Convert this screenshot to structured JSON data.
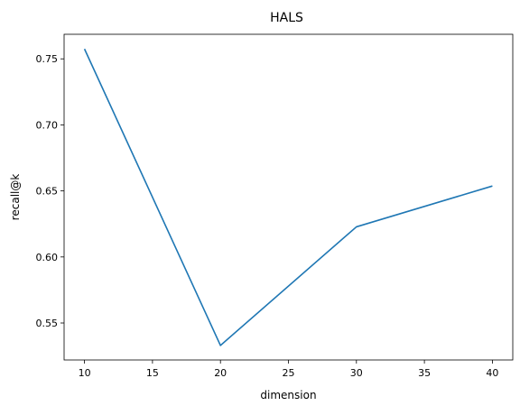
{
  "chart_data": {
    "type": "line",
    "title": "HALS",
    "xlabel": "dimension",
    "ylabel": "recall@k",
    "x": [
      10,
      20,
      30,
      40
    ],
    "series": [
      {
        "values": [
          0.7575,
          0.533,
          0.6228,
          0.6537
        ]
      }
    ],
    "xlim": [
      8.5,
      41.5
    ],
    "ylim": [
      0.522,
      0.7686
    ],
    "xticks": [
      10,
      15,
      20,
      25,
      30,
      35,
      40
    ],
    "yticks": [
      0.55,
      0.6,
      0.65,
      0.7,
      0.75
    ],
    "xtick_labels": [
      "10",
      "15",
      "20",
      "25",
      "30",
      "35",
      "40"
    ],
    "ytick_labels": [
      "0.55",
      "0.60",
      "0.65",
      "0.70",
      "0.75"
    ],
    "grid": false,
    "legend": "none",
    "colors": {
      "series": "#1f77b4",
      "axes": "#000000"
    }
  }
}
